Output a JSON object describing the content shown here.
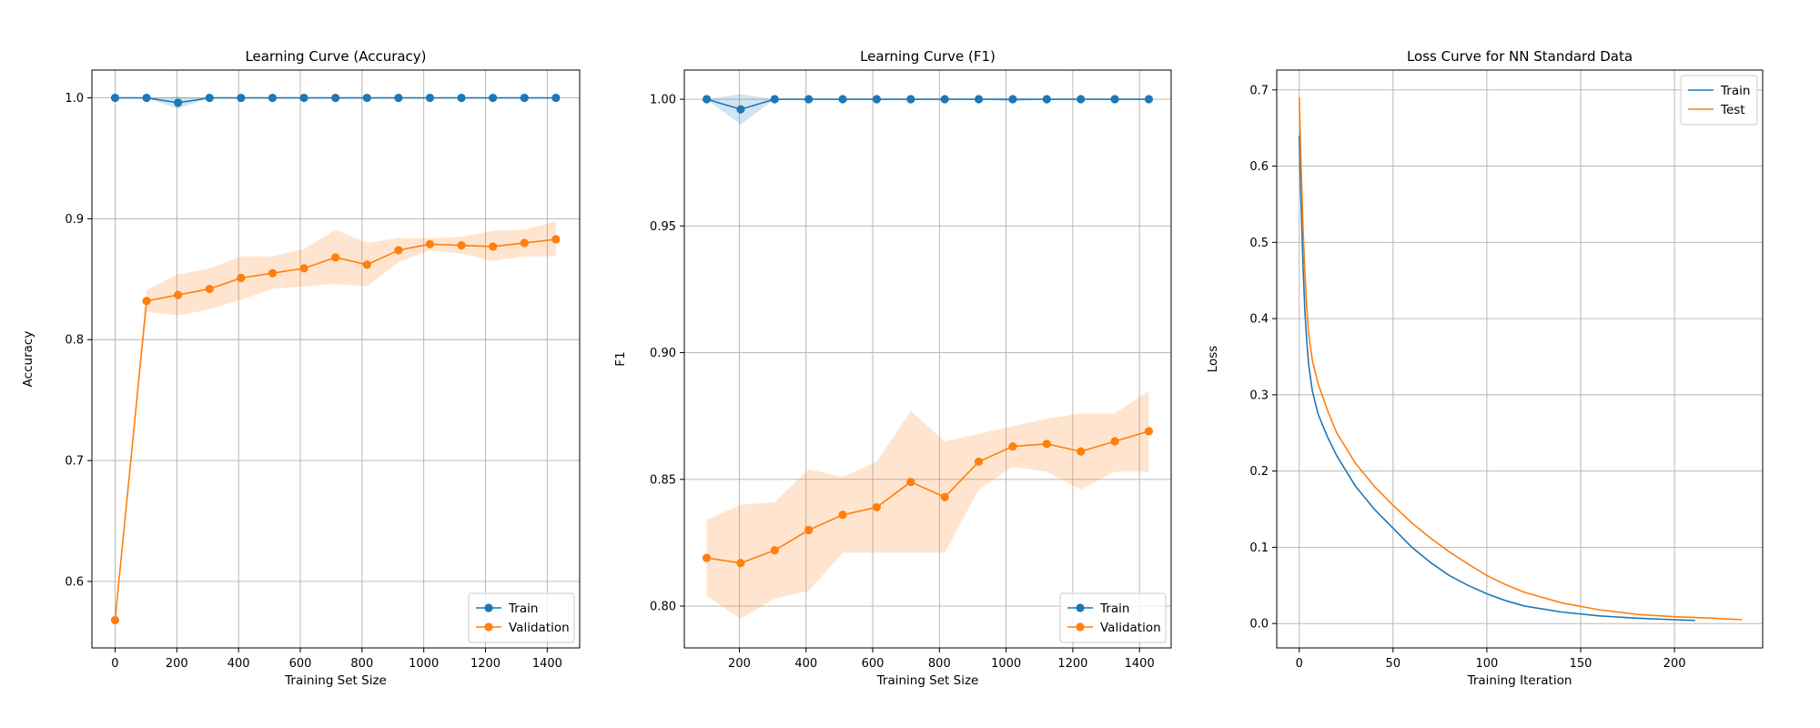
{
  "colors": {
    "train": "#1f77b4",
    "validation": "#ff7f0e",
    "grid": "#b0b0b0"
  },
  "chart_data": [
    {
      "type": "line",
      "title": "Learning Curve (Accuracy)",
      "xlabel": "Training Set Size",
      "ylabel": "Accuracy",
      "xlim": [
        -75,
        1505
      ],
      "ylim": [
        0.545,
        1.023
      ],
      "xticks": [
        0,
        200,
        400,
        600,
        800,
        1000,
        1200,
        1400
      ],
      "yticks": [
        0.6,
        0.7,
        0.8,
        0.9,
        1.0
      ],
      "ytick_labels": [
        "0.6",
        "0.7",
        "0.8",
        "0.9",
        "1.0"
      ],
      "grid": true,
      "legend": "lower-right",
      "markers": true,
      "x": [
        0,
        102,
        204,
        306,
        408,
        510,
        612,
        714,
        816,
        918,
        1020,
        1122,
        1224,
        1326,
        1428
      ],
      "series": [
        {
          "name": "Train",
          "color": "#1f77b4",
          "values": [
            1.0,
            1.0,
            0.996,
            1.0,
            1.0,
            1.0,
            1.0,
            1.0,
            1.0,
            1.0,
            1.0,
            1.0,
            1.0,
            1.0,
            1.0
          ],
          "band_low": [
            1.0,
            1.0,
            0.991,
            1.0,
            1.0,
            1.0,
            1.0,
            1.0,
            1.0,
            1.0,
            1.0,
            1.0,
            1.0,
            1.0,
            1.0
          ],
          "band_high": [
            1.0,
            1.0,
            1.001,
            1.0,
            1.0,
            1.0,
            1.0,
            1.0,
            1.0,
            1.0,
            1.0,
            1.0,
            1.0,
            1.0,
            1.0
          ]
        },
        {
          "name": "Validation",
          "color": "#ff7f0e",
          "values": [
            0.568,
            0.832,
            0.837,
            0.842,
            0.851,
            0.855,
            0.859,
            0.868,
            0.862,
            0.874,
            0.879,
            0.878,
            0.877,
            0.88,
            0.883
          ],
          "band_low": [
            0.568,
            0.823,
            0.82,
            0.825,
            0.833,
            0.842,
            0.844,
            0.846,
            0.844,
            0.864,
            0.874,
            0.871,
            0.865,
            0.869,
            0.869
          ],
          "band_high": [
            0.568,
            0.841,
            0.854,
            0.859,
            0.869,
            0.869,
            0.875,
            0.891,
            0.88,
            0.884,
            0.884,
            0.885,
            0.89,
            0.891,
            0.898
          ]
        }
      ]
    },
    {
      "type": "line",
      "title": "Learning Curve (F1)",
      "xlabel": "Training Set Size",
      "ylabel": "F1",
      "xlim": [
        35,
        1495
      ],
      "ylim": [
        0.7835,
        1.0115
      ],
      "xticks": [
        200,
        400,
        600,
        800,
        1000,
        1200,
        1400
      ],
      "yticks": [
        0.8,
        0.85,
        0.9,
        0.95,
        1.0
      ],
      "ytick_labels": [
        "0.80",
        "0.85",
        "0.90",
        "0.95",
        "1.00"
      ],
      "grid": true,
      "legend": "lower-right",
      "markers": true,
      "x": [
        102,
        204,
        306,
        408,
        510,
        612,
        714,
        816,
        918,
        1020,
        1122,
        1224,
        1326,
        1428
      ],
      "series": [
        {
          "name": "Train",
          "color": "#1f77b4",
          "values": [
            1.0,
            0.996,
            1.0,
            1.0,
            1.0,
            1.0,
            1.0,
            1.0,
            1.0,
            1.0,
            1.0,
            1.0,
            1.0,
            1.0
          ],
          "band_low": [
            1.0,
            0.99,
            1.0,
            1.0,
            1.0,
            1.0,
            1.0,
            1.0,
            1.0,
            0.999,
            1.0,
            1.0,
            1.0,
            1.0
          ],
          "band_high": [
            1.0,
            1.002,
            1.0,
            1.0,
            1.0,
            1.0,
            1.0,
            1.0,
            1.0,
            1.0,
            1.0,
            1.0,
            1.0,
            1.0
          ]
        },
        {
          "name": "Validation",
          "color": "#ff7f0e",
          "values": [
            0.819,
            0.817,
            0.822,
            0.83,
            0.836,
            0.839,
            0.849,
            0.843,
            0.857,
            0.863,
            0.864,
            0.861,
            0.865,
            0.869
          ],
          "band_low": [
            0.804,
            0.795,
            0.803,
            0.806,
            0.821,
            0.821,
            0.821,
            0.821,
            0.846,
            0.855,
            0.853,
            0.846,
            0.853,
            0.853
          ],
          "band_high": [
            0.834,
            0.84,
            0.841,
            0.854,
            0.851,
            0.857,
            0.877,
            0.865,
            0.868,
            0.871,
            0.874,
            0.876,
            0.876,
            0.885
          ]
        }
      ]
    },
    {
      "type": "line",
      "title": "Loss Curve for NN Standard Data",
      "xlabel": "Training Iteration",
      "ylabel": "Loss",
      "xlim": [
        -12,
        247
      ],
      "ylim": [
        -0.032,
        0.726
      ],
      "xticks": [
        0,
        50,
        100,
        150,
        200
      ],
      "yticks": [
        0.0,
        0.1,
        0.2,
        0.3,
        0.4,
        0.5,
        0.6,
        0.7
      ],
      "ytick_labels": [
        "0.0",
        "0.1",
        "0.2",
        "0.3",
        "0.4",
        "0.5",
        "0.6",
        "0.7"
      ],
      "grid": true,
      "legend": "top-right",
      "markers": false,
      "series": [
        {
          "name": "Train",
          "color": "#1f77b4",
          "x": [
            0,
            1,
            2,
            3,
            4,
            5,
            7,
            10,
            15,
            20,
            30,
            40,
            50,
            60,
            70,
            80,
            90,
            100,
            110,
            120,
            140,
            160,
            180,
            200,
            211
          ],
          "values": [
            0.64,
            0.55,
            0.47,
            0.41,
            0.37,
            0.34,
            0.305,
            0.275,
            0.245,
            0.22,
            0.18,
            0.15,
            0.125,
            0.1,
            0.08,
            0.063,
            0.05,
            0.039,
            0.03,
            0.023,
            0.015,
            0.01,
            0.007,
            0.005,
            0.004
          ]
        },
        {
          "name": "Test",
          "color": "#ff7f0e",
          "x": [
            0,
            1,
            2,
            3,
            4,
            5,
            7,
            10,
            15,
            20,
            30,
            40,
            50,
            60,
            70,
            80,
            90,
            100,
            110,
            120,
            140,
            160,
            180,
            200,
            220,
            236
          ],
          "values": [
            0.69,
            0.6,
            0.52,
            0.46,
            0.415,
            0.38,
            0.345,
            0.315,
            0.28,
            0.25,
            0.21,
            0.18,
            0.155,
            0.132,
            0.112,
            0.094,
            0.078,
            0.063,
            0.051,
            0.041,
            0.027,
            0.018,
            0.012,
            0.009,
            0.007,
            0.005
          ]
        }
      ]
    }
  ]
}
